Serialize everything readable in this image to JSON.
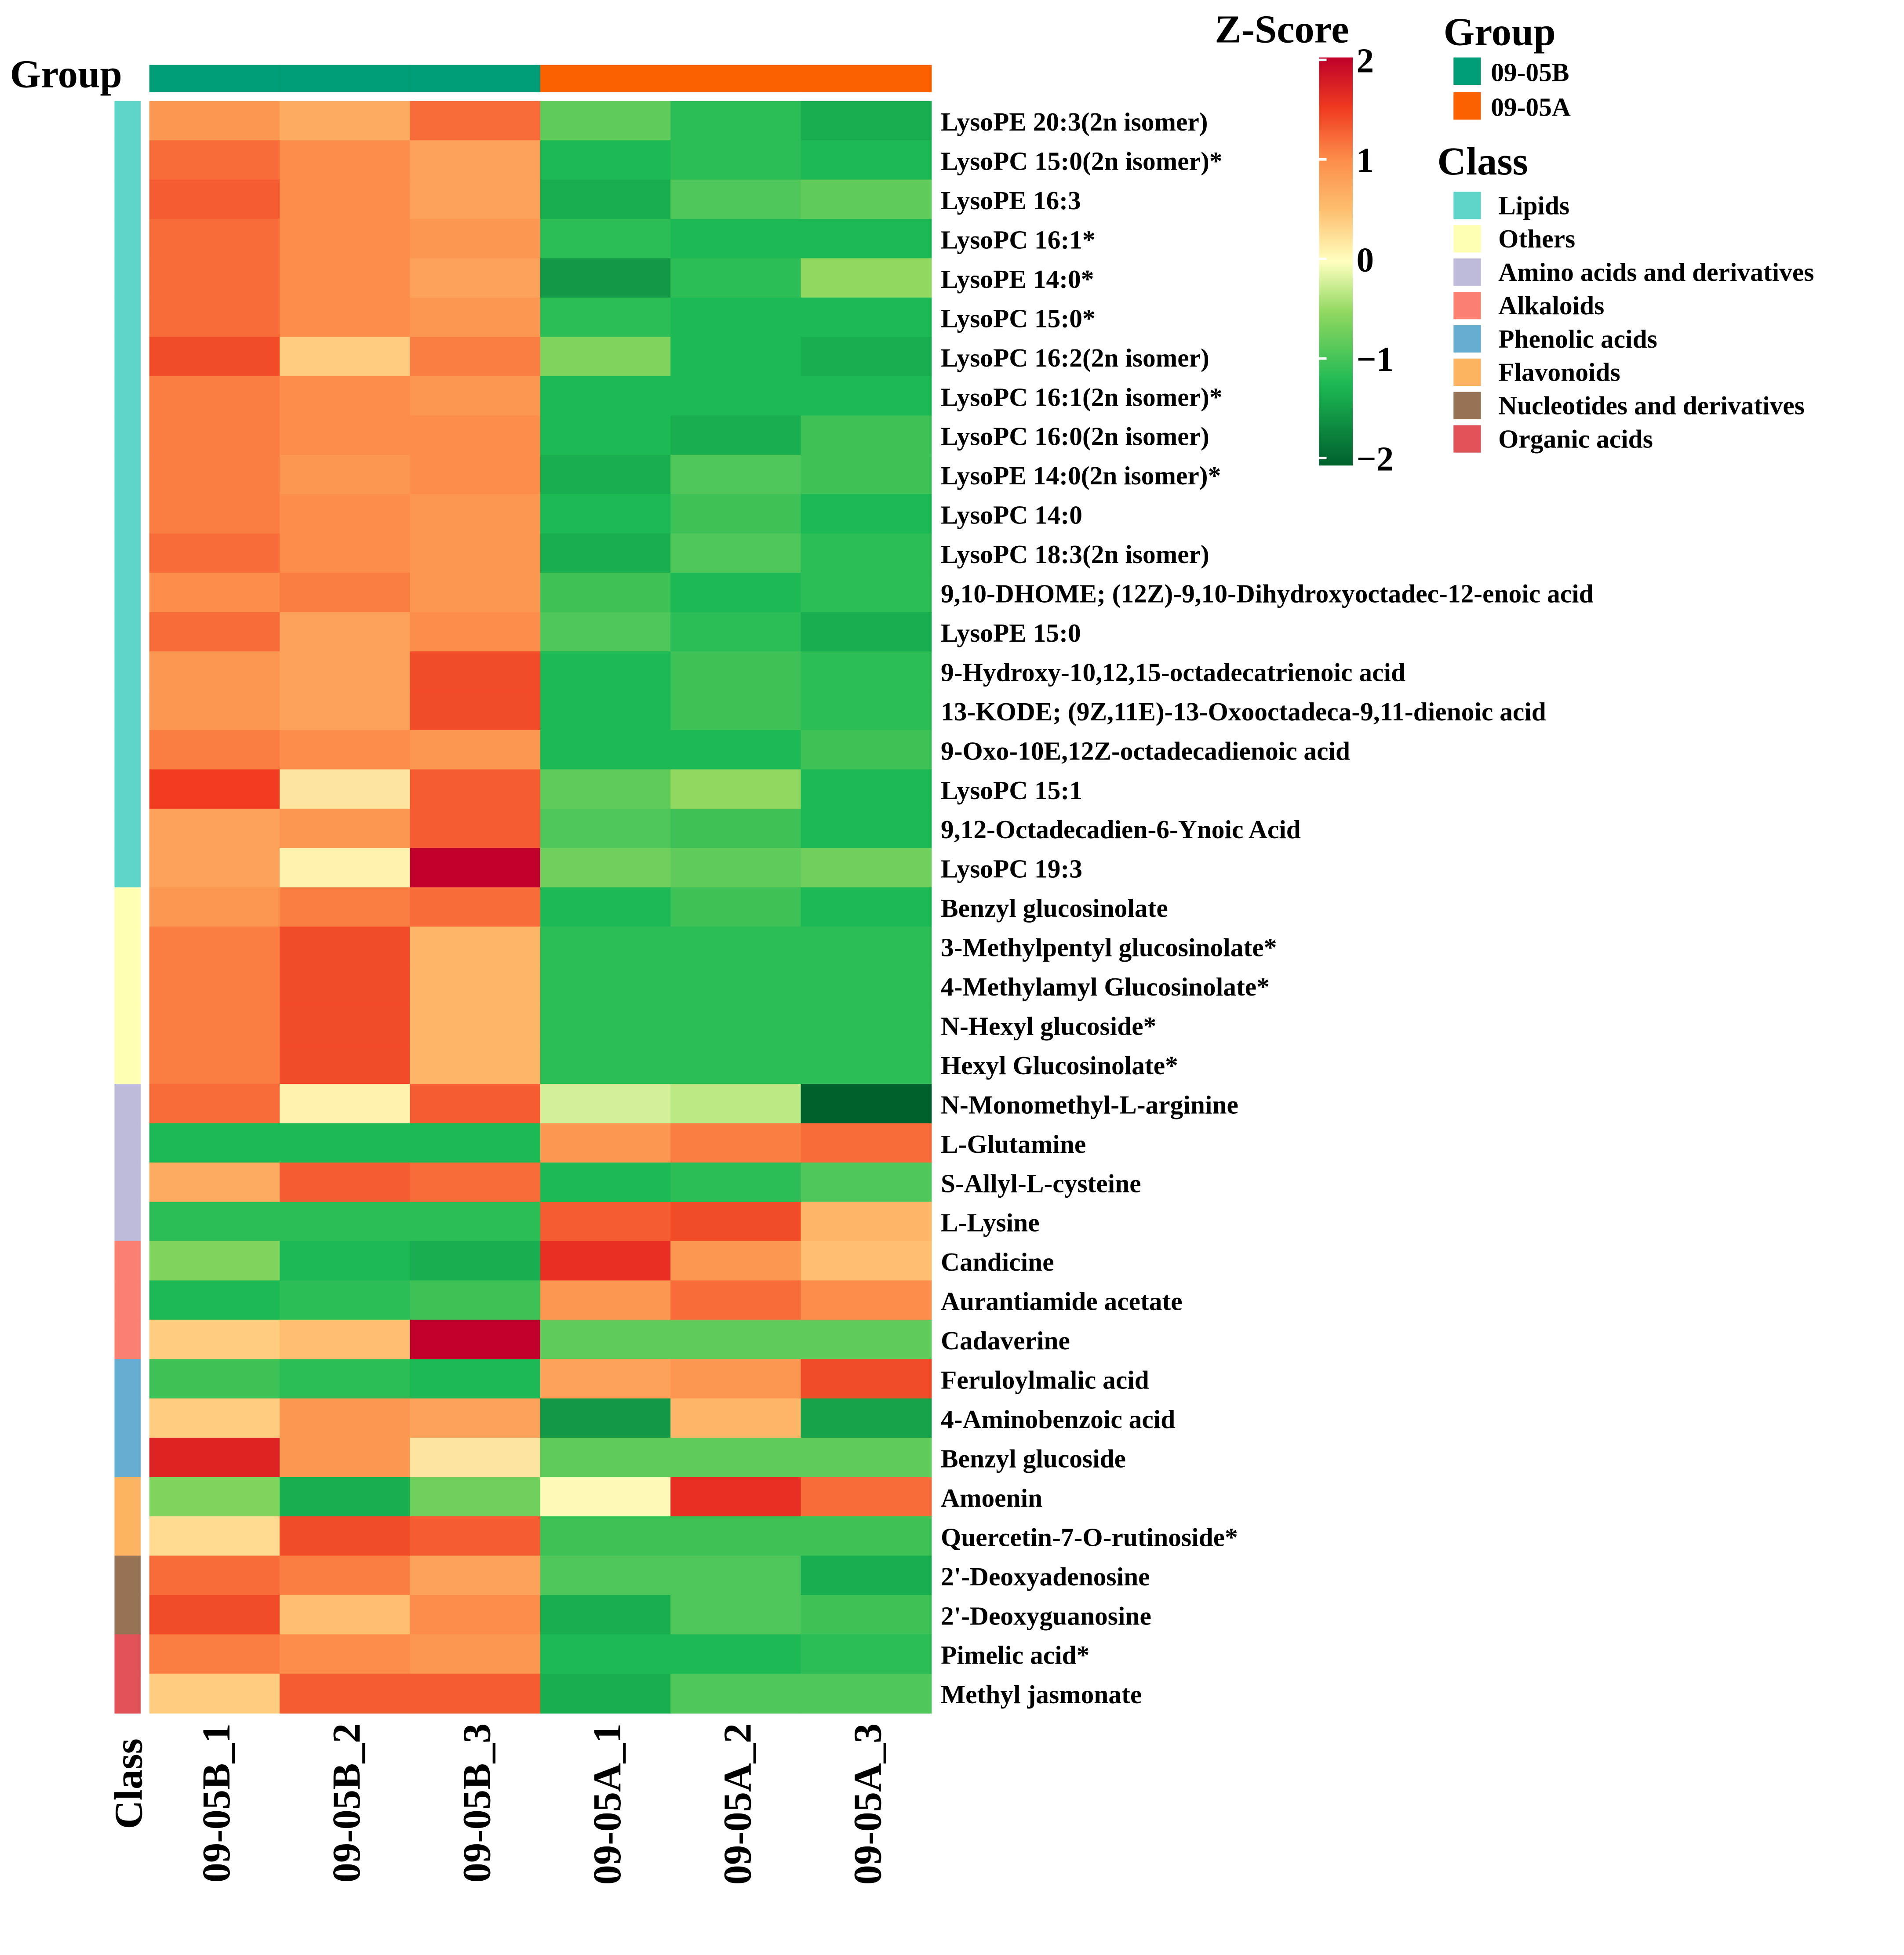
{
  "chart_data": {
    "type": "heatmap",
    "title": "",
    "group_label": "Group",
    "class_label": "Class",
    "columns": [
      "09-05B_1",
      "09-05B_2",
      "09-05B_3",
      "09-05A_1",
      "09-05A_2",
      "09-05A_3"
    ],
    "column_groups": [
      "09-05B",
      "09-05B",
      "09-05B",
      "09-05A",
      "09-05A",
      "09-05A"
    ],
    "rows": [
      "LysoPE 20:3(2n isomer)",
      "LysoPC 15:0(2n isomer)*",
      "LysoPE 16:3",
      "LysoPC 16:1*",
      "LysoPE 14:0*",
      "LysoPC 15:0*",
      "LysoPC 16:2(2n isomer)",
      "LysoPC 16:1(2n isomer)*",
      "LysoPC 16:0(2n isomer)",
      "LysoPE 14:0(2n isomer)*",
      "LysoPC 14:0",
      "LysoPC 18:3(2n isomer)",
      "9,10-DHOME; (12Z)-9,10-Dihydroxyoctadec-12-enoic acid",
      "LysoPE 15:0",
      "9-Hydroxy-10,12,15-octadecatrienoic acid",
      "13-KODE; (9Z,11E)-13-Oxooctadeca-9,11-dienoic acid",
      "9-Oxo-10E,12Z-octadecadienoic acid",
      "LysoPC 15:1",
      "9,12-Octadecadien-6-Ynoic Acid",
      "LysoPC 19:3",
      "Benzyl glucosinolate",
      "3-Methylpentyl glucosinolate*",
      "4-Methylamyl Glucosinolate*",
      "N-Hexyl glucoside*",
      "Hexyl Glucosinolate*",
      "N-Monomethyl-L-arginine",
      "L-Glutamine",
      "S-Allyl-L-cysteine",
      "L-Lysine",
      "Candicine",
      "Aurantiamide acetate",
      "Cadaverine",
      "Feruloylmalic acid",
      "4-Aminobenzoic acid",
      "Benzyl glucoside",
      "Amoenin",
      "Quercetin-7-O-rutinoside*",
      "2'-Deoxyadenosine",
      "2'-Deoxyguanosine",
      "Pimelic acid*",
      "Methyl jasmonate"
    ],
    "row_classes": [
      "Lipids",
      "Lipids",
      "Lipids",
      "Lipids",
      "Lipids",
      "Lipids",
      "Lipids",
      "Lipids",
      "Lipids",
      "Lipids",
      "Lipids",
      "Lipids",
      "Lipids",
      "Lipids",
      "Lipids",
      "Lipids",
      "Lipids",
      "Lipids",
      "Lipids",
      "Lipids",
      "Others",
      "Others",
      "Others",
      "Others",
      "Others",
      "Amino acids and derivatives",
      "Amino acids and derivatives",
      "Amino acids and derivatives",
      "Amino acids and derivatives",
      "Alkaloids",
      "Alkaloids",
      "Alkaloids",
      "Phenolic acids",
      "Phenolic acids",
      "Phenolic acids",
      "Flavonoids",
      "Flavonoids",
      "Nucleotides and derivatives",
      "Nucleotides and derivatives",
      "Organic acids",
      "Organic acids"
    ],
    "values": [
      [
        0.9,
        0.7,
        1.2,
        -0.8,
        -1.1,
        -1.3
      ],
      [
        1.2,
        1.0,
        0.8,
        -1.2,
        -1.1,
        -1.2
      ],
      [
        1.3,
        1.0,
        0.8,
        -1.3,
        -0.9,
        -0.8
      ],
      [
        1.2,
        1.0,
        0.9,
        -1.1,
        -1.2,
        -1.2
      ],
      [
        1.2,
        1.0,
        0.8,
        -1.5,
        -1.1,
        -0.5
      ],
      [
        1.2,
        1.0,
        0.9,
        -1.1,
        -1.2,
        -1.2
      ],
      [
        1.4,
        0.4,
        1.1,
        -0.6,
        -1.2,
        -1.3
      ],
      [
        1.1,
        1.0,
        0.9,
        -1.2,
        -1.2,
        -1.2
      ],
      [
        1.1,
        1.0,
        1.0,
        -1.2,
        -1.3,
        -1.0
      ],
      [
        1.1,
        0.9,
        1.0,
        -1.3,
        -0.9,
        -1.0
      ],
      [
        1.1,
        1.0,
        0.9,
        -1.2,
        -1.0,
        -1.2
      ],
      [
        1.2,
        1.0,
        0.9,
        -1.3,
        -0.9,
        -1.1
      ],
      [
        1.0,
        1.1,
        0.9,
        -1.0,
        -1.2,
        -1.1
      ],
      [
        1.2,
        0.8,
        1.0,
        -0.9,
        -1.1,
        -1.3
      ],
      [
        0.9,
        0.8,
        1.4,
        -1.2,
        -1.0,
        -1.1
      ],
      [
        0.9,
        0.8,
        1.4,
        -1.2,
        -1.0,
        -1.1
      ],
      [
        1.1,
        1.0,
        0.9,
        -1.2,
        -1.2,
        -1.0
      ],
      [
        1.5,
        0.2,
        1.3,
        -0.8,
        -0.5,
        -1.2
      ],
      [
        0.8,
        0.9,
        1.3,
        -0.9,
        -1.0,
        -1.2
      ],
      [
        0.8,
        0.1,
        2.0,
        -0.7,
        -0.8,
        -0.7
      ],
      [
        0.9,
        1.1,
        1.2,
        -1.2,
        -1.0,
        -1.2
      ],
      [
        1.1,
        1.4,
        0.6,
        -1.1,
        -1.1,
        -1.1
      ],
      [
        1.1,
        1.4,
        0.6,
        -1.1,
        -1.1,
        -1.1
      ],
      [
        1.1,
        1.4,
        0.6,
        -1.1,
        -1.1,
        -1.1
      ],
      [
        1.1,
        1.4,
        0.6,
        -1.1,
        -1.1,
        -1.1
      ],
      [
        1.2,
        0.1,
        1.3,
        -0.2,
        -0.3,
        -2.0
      ],
      [
        -1.2,
        -1.2,
        -1.2,
        0.9,
        1.1,
        1.2
      ],
      [
        0.7,
        1.3,
        1.2,
        -1.2,
        -1.1,
        -0.9
      ],
      [
        -1.1,
        -1.1,
        -1.1,
        1.3,
        1.4,
        0.6
      ],
      [
        -0.6,
        -1.2,
        -1.3,
        1.6,
        0.9,
        0.5
      ],
      [
        -1.2,
        -1.1,
        -1.0,
        0.9,
        1.2,
        1.0
      ],
      [
        0.4,
        0.5,
        2.0,
        -0.8,
        -0.8,
        -0.8
      ],
      [
        -1.0,
        -1.1,
        -1.2,
        0.8,
        0.9,
        1.4
      ],
      [
        0.4,
        0.9,
        0.8,
        -1.5,
        0.6,
        -1.4
      ],
      [
        1.7,
        0.9,
        0.2,
        -0.8,
        -0.8,
        -0.8
      ],
      [
        -0.6,
        -1.3,
        -0.7,
        0.05,
        1.6,
        1.2
      ],
      [
        0.3,
        1.4,
        1.3,
        -1.0,
        -1.0,
        -1.0
      ],
      [
        1.2,
        1.1,
        0.8,
        -0.9,
        -0.9,
        -1.3
      ],
      [
        1.4,
        0.5,
        1.0,
        -1.3,
        -0.9,
        -1.0
      ],
      [
        1.1,
        1.0,
        0.9,
        -1.2,
        -1.2,
        -1.1
      ],
      [
        0.4,
        1.3,
        1.3,
        -1.3,
        -0.9,
        -0.9
      ]
    ],
    "colorbar": {
      "title": "Z-Score",
      "range": [
        -2,
        2
      ],
      "ticks": [
        "2",
        "1",
        "0",
        "−1",
        "−2"
      ]
    },
    "group_legend": {
      "title": "Group",
      "items": [
        {
          "label": "09-05B",
          "color": "#009b77"
        },
        {
          "label": "09-05A",
          "color": "#fd6000"
        }
      ]
    },
    "class_legend": {
      "title": "Class",
      "items": [
        {
          "label": "Lipids",
          "color": "#5fd4c8"
        },
        {
          "label": "Others",
          "color": "#ffffb3"
        },
        {
          "label": "Amino acids and derivatives",
          "color": "#bebada"
        },
        {
          "label": "Alkaloids",
          "color": "#fb8072"
        },
        {
          "label": "Phenolic acids",
          "color": "#65acd1"
        },
        {
          "label": "Flavonoids",
          "color": "#fdb462"
        },
        {
          "label": "Nucleotides and derivatives",
          "color": "#977356"
        },
        {
          "label": "Organic acids",
          "color": "#e05257"
        }
      ]
    }
  }
}
